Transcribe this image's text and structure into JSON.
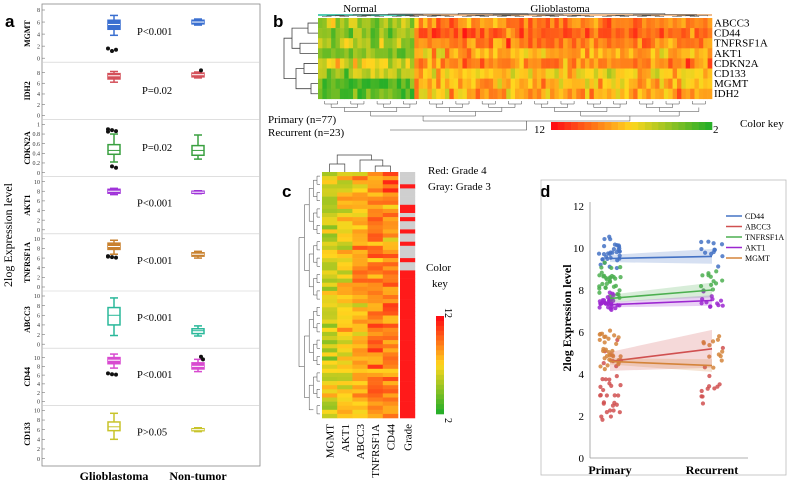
{
  "panels": {
    "a": "a",
    "b": "b",
    "c": "c",
    "d": "d"
  },
  "chart_data": [
    {
      "id": "a",
      "type": "box",
      "ylabel": "2log Expression level",
      "groups": [
        "Glioblastoma",
        "Non-tumor"
      ],
      "genes": [
        {
          "name": "MGMT",
          "color": "#3a6fd0",
          "ticks": [
            0,
            2,
            4,
            6,
            8
          ],
          "ylim": [
            0,
            8
          ],
          "glio": {
            "q1": 4.8,
            "median": 5.6,
            "q3": 6.3,
            "wlo": 3.8,
            "whi": 7.1
          },
          "non": {
            "q1": 5.7,
            "median": 6.0,
            "q3": 6.3,
            "wlo": 5.5,
            "whi": 6.5
          },
          "outliers_glio": [
            1.6,
            1.2,
            1.4
          ],
          "outliers_non": [],
          "pvalue": "P<0.001"
        },
        {
          "name": "IDH2",
          "color": "#d4505a",
          "ticks": [
            0,
            2,
            4,
            6,
            8
          ],
          "ylim": [
            0,
            9
          ],
          "glio": {
            "q1": 6.8,
            "median": 7.4,
            "q3": 7.8,
            "wlo": 6.2,
            "whi": 8.2
          },
          "non": {
            "q1": 7.2,
            "median": 7.6,
            "q3": 7.9,
            "wlo": 7.0,
            "whi": 8.1
          },
          "outliers_glio": [],
          "outliers_non": [
            8.4
          ],
          "pvalue": "P=0.02"
        },
        {
          "name": "CDKN2A",
          "color": "#3aa040",
          "ticks": [
            0,
            0.2,
            0.4,
            0.6,
            0.8,
            1
          ],
          "ylim": [
            0,
            1
          ],
          "glio": {
            "q1": 0.38,
            "median": 0.46,
            "q3": 0.58,
            "wlo": 0.22,
            "whi": 0.8
          },
          "non": {
            "q1": 0.36,
            "median": 0.46,
            "q3": 0.56,
            "wlo": 0.28,
            "whi": 0.78
          },
          "outliers_glio": [
            0.9,
            0.88,
            0.86,
            0.85,
            0.13,
            0.1
          ],
          "outliers_non": [],
          "pvalue": "P=0.02"
        },
        {
          "name": "AKT1",
          "color": "#a033d9",
          "ticks": [
            0,
            2,
            4,
            6,
            8,
            10
          ],
          "ylim": [
            0,
            10
          ],
          "glio": {
            "q1": 7.6,
            "median": 8.0,
            "q3": 8.4,
            "wlo": 7.3,
            "whi": 8.6
          },
          "non": {
            "q1": 7.6,
            "median": 7.8,
            "q3": 8.0,
            "wlo": 7.5,
            "whi": 8.1
          },
          "outliers_glio": [],
          "outliers_non": [],
          "pvalue": "P<0.001"
        },
        {
          "name": "TNFRSF1A",
          "color": "#c8812e",
          "ticks": [
            0,
            2,
            4,
            6,
            8,
            10
          ],
          "ylim": [
            0,
            10
          ],
          "glio": {
            "q1": 7.8,
            "median": 8.4,
            "q3": 9.1,
            "wlo": 6.8,
            "whi": 9.7
          },
          "non": {
            "q1": 6.4,
            "median": 6.8,
            "q3": 7.1,
            "wlo": 6.0,
            "whi": 7.4
          },
          "outliers_glio": [
            6.3,
            6.2,
            6.1,
            6.4
          ],
          "outliers_non": [],
          "pvalue": "P<0.001"
        },
        {
          "name": "ABCC3",
          "color": "#2ab89a",
          "ticks": [
            0,
            2,
            4,
            6,
            8,
            10
          ],
          "ylim": [
            0,
            10
          ],
          "glio": {
            "q1": 4.0,
            "median": 6.0,
            "q3": 7.6,
            "wlo": 1.8,
            "whi": 9.6
          },
          "non": {
            "q1": 2.2,
            "median": 2.8,
            "q3": 3.2,
            "wlo": 1.7,
            "whi": 3.8
          },
          "outliers_glio": [],
          "outliers_non": [],
          "pvalue": "P<0.001"
        },
        {
          "name": "CD44",
          "color": "#d84ad0",
          "ticks": [
            0,
            2,
            4,
            6,
            8,
            10
          ],
          "ylim": [
            0,
            11
          ],
          "glio": {
            "q1": 8.6,
            "median": 9.4,
            "q3": 10.0,
            "wlo": 7.6,
            "whi": 10.8
          },
          "non": {
            "q1": 7.4,
            "median": 8.0,
            "q3": 8.8,
            "wlo": 6.8,
            "whi": 9.6
          },
          "outliers_glio": [
            6.4,
            6.2,
            6.1
          ],
          "outliers_non": [
            10.2,
            9.6
          ],
          "pvalue": "P<0.001"
        },
        {
          "name": "CD133",
          "color": "#c8c42a",
          "ticks": [
            0,
            2,
            4,
            6,
            8,
            10
          ],
          "ylim": [
            0,
            10
          ],
          "glio": {
            "q1": 5.8,
            "median": 6.6,
            "q3": 7.6,
            "wlo": 4.0,
            "whi": 9.4
          },
          "non": {
            "q1": 5.8,
            "median": 6.0,
            "q3": 6.2,
            "wlo": 5.6,
            "whi": 6.4
          },
          "outliers_glio": [],
          "outliers_non": [],
          "pvalue": "P>0.05"
        }
      ]
    },
    {
      "id": "b",
      "type": "heatmap",
      "groups": [
        {
          "name": "Normal",
          "color": "#1abc9c",
          "fraction": 0.24
        },
        {
          "name": "Glioblastoma",
          "color": "#e8a56a",
          "fraction": 0.76
        }
      ],
      "genes": [
        "ABCC3",
        "CD44",
        "TNFRSF1A",
        "AKT1",
        "CDKN2A",
        "CD133",
        "MGMT",
        "IDH2"
      ],
      "primary_label": "Primary (n=77)",
      "recurrent_label": "Recurrent (n=23)",
      "color_key_label": "Color key",
      "color_key_min": "12",
      "color_key_max": "2"
    },
    {
      "id": "c",
      "type": "heatmap",
      "columns": [
        "MGMT",
        "AKT1",
        "ABCC3",
        "TNFRSF1A",
        "CD44",
        "Grade"
      ],
      "legend_red": "Red: Grade 4",
      "legend_gray": "Gray: Grade 3",
      "color_key_label": "Color",
      "color_key_label2": "key",
      "color_key_max": "12",
      "color_key_min": "2"
    },
    {
      "id": "d",
      "type": "scatter",
      "ylabel": "2log Expression level",
      "categories": [
        "Primary",
        "Recurrent"
      ],
      "yticks": [
        0,
        2,
        4,
        6,
        8,
        10,
        12
      ],
      "ylim": [
        0,
        12
      ],
      "series": [
        {
          "name": "CD44",
          "color": "#4472c4",
          "fit": [
            9.5,
            9.6
          ],
          "ci": 0.35
        },
        {
          "name": "ABCC3",
          "color": "#d05050",
          "fit": [
            4.6,
            5.2
          ],
          "ci": 0.9
        },
        {
          "name": "TNFRSF1A",
          "color": "#4caf50",
          "fit": [
            7.6,
            8.0
          ],
          "ci": 0.35
        },
        {
          "name": "AKT1",
          "color": "#9c27d0",
          "fit": [
            7.3,
            7.5
          ],
          "ci": 0.25
        },
        {
          "name": "MGMT",
          "color": "#d4843a",
          "fit": [
            4.6,
            4.4
          ],
          "ci": 0.3
        }
      ]
    }
  ]
}
